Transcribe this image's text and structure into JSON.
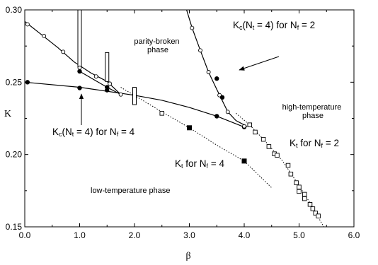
{
  "chart_data": {
    "type": "line",
    "title": "",
    "xlabel": "β",
    "ylabel": "K",
    "xlim": [
      0.0,
      6.0
    ],
    "ylim": [
      0.15,
      0.3
    ],
    "x_ticks": [
      "0.0",
      "1.0",
      "2.0",
      "3.0",
      "4.0",
      "5.0",
      "6.0"
    ],
    "y_ticks": [
      "0.15",
      "0.20",
      "0.25",
      "0.30"
    ],
    "grid": false,
    "legend": "none",
    "series": [
      {
        "style": "solid-line-open-circles",
        "points": [
          [
            0.05,
            0.29
          ],
          [
            0.35,
            0.282
          ],
          [
            0.7,
            0.271
          ],
          [
            1.0,
            0.26
          ],
          [
            1.3,
            0.254
          ],
          [
            1.55,
            0.249
          ],
          [
            1.75,
            0.2415
          ]
        ],
        "curve": [
          [
            0.0,
            0.292
          ],
          [
            0.3,
            0.283
          ],
          [
            0.6,
            0.274
          ],
          [
            0.9,
            0.264
          ],
          [
            1.2,
            0.2565
          ],
          [
            1.5,
            0.2505
          ],
          [
            1.75,
            0.2415
          ]
        ]
      },
      {
        "style": "solid-line-filled-circles",
        "points": [
          [
            0.05,
            0.25
          ],
          [
            1.0,
            0.246
          ],
          [
            1.5,
            0.2445
          ],
          [
            3.5,
            0.2265
          ],
          [
            4.0,
            0.219
          ]
        ],
        "curve": [
          [
            0.0,
            0.25
          ],
          [
            1.0,
            0.2465
          ],
          [
            2.0,
            0.241
          ],
          [
            2.5,
            0.2375
          ],
          [
            3.0,
            0.2325
          ],
          [
            3.5,
            0.2265
          ],
          [
            4.0,
            0.219
          ]
        ]
      },
      {
        "style": "solid-line-open-circles",
        "points": [
          [
            3.05,
            0.2875
          ],
          [
            3.2,
            0.272
          ],
          [
            3.35,
            0.257
          ],
          [
            3.55,
            0.241
          ],
          [
            3.7,
            0.2295
          ],
          [
            4.0,
            0.2195
          ]
        ],
        "curve": [
          [
            2.95,
            0.3
          ],
          [
            3.05,
            0.2875
          ],
          [
            3.2,
            0.272
          ],
          [
            3.35,
            0.257
          ],
          [
            3.5,
            0.245
          ],
          [
            3.7,
            0.2295
          ],
          [
            3.85,
            0.2235
          ],
          [
            4.05,
            0.2195
          ]
        ]
      },
      {
        "style": "solid-line-filled-circles",
        "points": [
          [
            1.0,
            0.2575
          ],
          [
            1.5,
            0.2465
          ],
          [
            3.5,
            0.2525
          ],
          [
            3.6,
            0.2395
          ]
        ],
        "curve": [
          [
            1.0,
            0.2575
          ],
          [
            1.5,
            0.2465
          ],
          [
            1.75,
            0.2415
          ]
        ]
      },
      {
        "style": "dotted-line-filled-squares",
        "points": [
          [
            3.0,
            0.2185
          ],
          [
            4.0,
            0.1955
          ]
        ],
        "curve": [
          [
            1.75,
            0.2465
          ],
          [
            2.5,
            0.2295
          ],
          [
            3.0,
            0.2185
          ],
          [
            3.5,
            0.2065
          ],
          [
            4.0,
            0.1955
          ],
          [
            4.5,
            0.177
          ]
        ]
      },
      {
        "style": "dotted-line-open-squares",
        "points": [
          [
            2.5,
            0.2285
          ],
          [
            4.1,
            0.2205
          ],
          [
            4.2,
            0.2155
          ],
          [
            4.35,
            0.2105
          ],
          [
            4.45,
            0.2055
          ],
          [
            4.55,
            0.2005
          ],
          [
            4.6,
            0.1995
          ],
          [
            4.8,
            0.1925
          ],
          [
            4.85,
            0.1865
          ],
          [
            4.95,
            0.1805
          ],
          [
            5.0,
            0.1775
          ],
          [
            5.0,
            0.1745
          ],
          [
            5.1,
            0.1725
          ],
          [
            5.1,
            0.1695
          ],
          [
            5.2,
            0.1655
          ],
          [
            5.25,
            0.1625
          ],
          [
            5.3,
            0.1595
          ],
          [
            5.35,
            0.1575
          ]
        ],
        "curve": [
          [
            3.85,
            0.2285
          ],
          [
            4.1,
            0.2205
          ],
          [
            4.4,
            0.2085
          ],
          [
            4.7,
            0.1955
          ],
          [
            5.0,
            0.1785
          ],
          [
            5.2,
            0.1665
          ],
          [
            5.45,
            0.15
          ]
        ]
      }
    ],
    "bars": [
      {
        "x": 1.0,
        "y_low": 0.2605,
        "y_high": 0.3
      },
      {
        "x": 1.5,
        "y_low": 0.2505,
        "y_high": 0.2705
      },
      {
        "x": 2.0,
        "y_low": 0.2345,
        "y_high": 0.2465
      }
    ],
    "annotations": {
      "parity_broken": [
        "parity-broken",
        "phase"
      ],
      "high_temp": [
        "high-temperature",
        "phase"
      ],
      "low_temp": "low-temperature phase",
      "kc_nf2": {
        "K": "K",
        "c": "c",
        "rest": "(N",
        "t": "t",
        "eq": " = 4)  for N",
        "f": "f",
        "val": " = 2"
      },
      "kc_nf4": {
        "K": "K",
        "c": "c",
        "rest": "(N",
        "t": "t",
        "eq": " = 4)  for N",
        "f": "f",
        "val": " = 4"
      },
      "kt_nf2": {
        "K": "K",
        "t": "t",
        "mid": " for N",
        "f": "f",
        "val": " = 2"
      },
      "kt_nf4": {
        "K": "K",
        "t": "t",
        "mid": " for N",
        "f": "f",
        "val": " = 4"
      }
    }
  }
}
